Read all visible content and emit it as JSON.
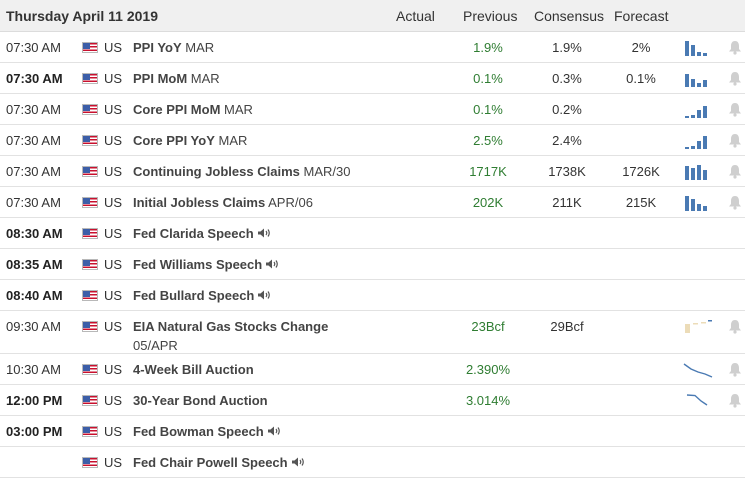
{
  "header": {
    "date": "Thursday April 11 2019",
    "actual": "Actual",
    "previous": "Previous",
    "consensus": "Consensus",
    "forecast": "Forecast"
  },
  "colors": {
    "positive": "#2f7d32",
    "chart_blue": "#4a7ab3",
    "chart_pale": "#ecdcb8"
  },
  "icons": {
    "flag": "us-flag-icon",
    "chart": "mini-chart-icon",
    "alert": "bell-icon",
    "audio": "speaker-icon"
  },
  "events": [
    {
      "time": "07:30 AM",
      "country": "US",
      "name": "PPI YoY",
      "period": "MAR",
      "previous": "1.9%",
      "consensus": "1.9%",
      "forecast": "2%"
    },
    {
      "time": "07:30 AM",
      "country": "US",
      "name": "PPI MoM",
      "period": "MAR",
      "previous": "0.1%",
      "consensus": "0.3%",
      "forecast": "0.1%"
    },
    {
      "time": "07:30 AM",
      "country": "US",
      "name": "Core PPI MoM",
      "period": "MAR",
      "previous": "0.1%",
      "consensus": "0.2%",
      "forecast": ""
    },
    {
      "time": "07:30 AM",
      "country": "US",
      "name": "Core PPI YoY",
      "period": "MAR",
      "previous": "2.5%",
      "consensus": "2.4%",
      "forecast": ""
    },
    {
      "time": "07:30 AM",
      "country": "US",
      "name": "Continuing Jobless Claims",
      "period": "MAR/30",
      "previous": "1717K",
      "consensus": "1738K",
      "forecast": "1726K"
    },
    {
      "time": "07:30 AM",
      "country": "US",
      "name": "Initial Jobless Claims",
      "period": "APR/06",
      "previous": "202K",
      "consensus": "211K",
      "forecast": "215K"
    },
    {
      "time": "08:30 AM",
      "country": "US",
      "name": "Fed Clarida Speech",
      "period": "",
      "previous": "",
      "consensus": "",
      "forecast": ""
    },
    {
      "time": "08:35 AM",
      "country": "US",
      "name": "Fed Williams Speech",
      "period": "",
      "previous": "",
      "consensus": "",
      "forecast": ""
    },
    {
      "time": "08:40 AM",
      "country": "US",
      "name": "Fed Bullard Speech",
      "period": "",
      "previous": "",
      "consensus": "",
      "forecast": ""
    },
    {
      "time": "09:30 AM",
      "country": "US",
      "name": "EIA Natural Gas Stocks Change",
      "period": "05/APR",
      "previous": "23Bcf",
      "consensus": "29Bcf",
      "forecast": ""
    },
    {
      "time": "10:30 AM",
      "country": "US",
      "name": "4-Week Bill Auction",
      "period": "",
      "previous": "2.390%",
      "consensus": "",
      "forecast": ""
    },
    {
      "time": "12:00 PM",
      "country": "US",
      "name": "30-Year Bond Auction",
      "period": "",
      "previous": "3.014%",
      "consensus": "",
      "forecast": ""
    },
    {
      "time": "03:00 PM",
      "country": "US",
      "name": "Fed Bowman Speech",
      "period": "",
      "previous": "",
      "consensus": "",
      "forecast": ""
    },
    {
      "time": "",
      "country": "US",
      "name": "Fed Chair Powell Speech",
      "period": "",
      "previous": "",
      "consensus": "",
      "forecast": ""
    }
  ]
}
